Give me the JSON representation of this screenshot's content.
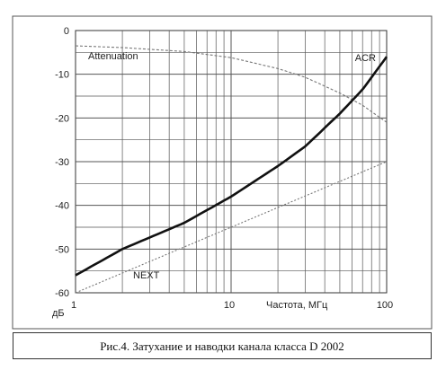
{
  "chart_data": {
    "type": "line",
    "x_scale": "log",
    "xlim": [
      1,
      100
    ],
    "ylim": [
      -60,
      0
    ],
    "x_ticks": [
      "1",
      "10",
      "100"
    ],
    "y_ticks": [
      "0",
      "-10",
      "-20",
      "-30",
      "-40",
      "-50",
      "-60"
    ],
    "xlabel": "Частота, МГц",
    "ylabel": "дБ",
    "grid": true,
    "series": [
      {
        "name": "Attenuation",
        "color": "#777777",
        "x": [
          1,
          2,
          5,
          10,
          20,
          30,
          50,
          70,
          100
        ],
        "y": [
          -3.5,
          -3.9,
          -4.8,
          -6.2,
          -8.7,
          -10.7,
          -14.3,
          -17.1,
          -21
        ]
      },
      {
        "name": "ACR",
        "color": "#111111",
        "x": [
          1,
          2,
          5,
          10,
          20,
          30,
          50,
          70,
          100
        ],
        "y": [
          -56,
          -50,
          -44,
          -38,
          -31,
          -26.5,
          -19,
          -13.5,
          -6
        ]
      },
      {
        "name": "NEXT",
        "color": "#777777",
        "x": [
          1,
          100
        ],
        "y": [
          -60,
          -30
        ]
      }
    ]
  },
  "caption": "Рис.4. Затухание и наводки канала класса D 2002"
}
